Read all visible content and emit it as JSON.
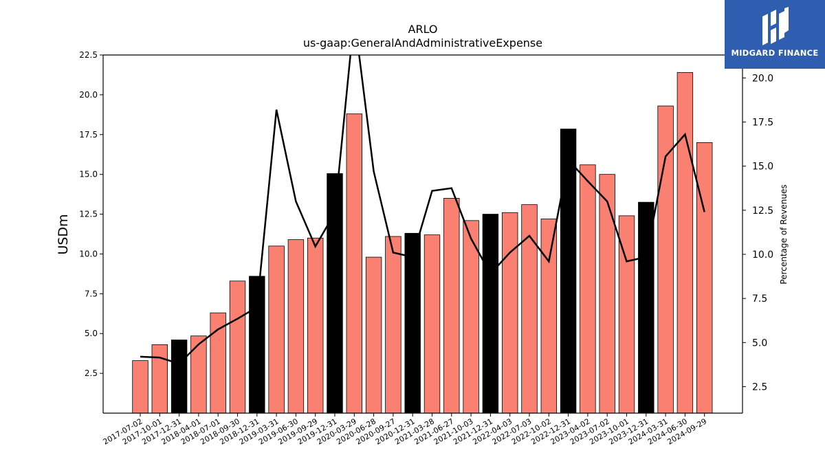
{
  "logo": {
    "text": "MIDGARD FINANCE",
    "icon": "midgard-logo-icon",
    "background": "#2f5db0"
  },
  "chart_data": {
    "type": "bar",
    "title": "ARLO",
    "subtitle": "us-gaap:GeneralAndAdministrativeExpense",
    "ylabel": "USDm",
    "ylabel_right": "Percentage of Revenues",
    "ylim": [
      0,
      22.5
    ],
    "ylim_right": [
      1.0,
      21.3
    ],
    "yticks": [
      2.5,
      5.0,
      7.5,
      10.0,
      12.5,
      15.0,
      17.5,
      20.0,
      22.5
    ],
    "yticks_right": [
      2.5,
      5.0,
      7.5,
      10.0,
      12.5,
      15.0,
      17.5,
      20.0
    ],
    "grid": false,
    "legend": "none",
    "colors": {
      "bar": "#fa8072",
      "bar_highlight": "#000000",
      "line": "#000000"
    },
    "categories": [
      "2017-07-02",
      "2017-10-01",
      "2017-12-31",
      "2018-04-01",
      "2018-07-01",
      "2018-09-30",
      "2018-12-31",
      "2019-03-31",
      "2019-06-30",
      "2019-09-29",
      "2019-12-31",
      "2020-03-29",
      "2020-06-28",
      "2020-09-27",
      "2020-12-31",
      "2021-03-28",
      "2021-06-27",
      "2021-10-03",
      "2021-12-31",
      "2022-04-03",
      "2022-07-03",
      "2022-10-02",
      "2022-12-31",
      "2023-04-02",
      "2023-07-02",
      "2023-10-01",
      "2023-12-31",
      "2024-03-31",
      "2024-06-30",
      "2024-09-29"
    ],
    "highlight_categories": [
      "2017-12-31",
      "2018-12-31",
      "2019-12-31",
      "2020-12-31",
      "2021-12-31",
      "2022-12-31",
      "2023-12-31"
    ],
    "series": [
      {
        "type": "bar",
        "axis": "left",
        "values": [
          3.3,
          4.3,
          4.6,
          4.85,
          6.3,
          8.3,
          8.6,
          10.5,
          10.9,
          11.0,
          15.05,
          18.8,
          9.8,
          11.1,
          11.3,
          11.2,
          13.5,
          12.1,
          12.5,
          12.6,
          13.1,
          12.2,
          17.85,
          15.6,
          15.0,
          12.4,
          13.25,
          19.3,
          21.4,
          17.0
        ]
      },
      {
        "type": "line",
        "axis": "right",
        "values": [
          4.2,
          4.15,
          3.8,
          4.9,
          5.75,
          6.35,
          7.0,
          18.2,
          13.0,
          10.45,
          12.35,
          23.5,
          14.7,
          10.1,
          9.85,
          13.6,
          13.75,
          10.9,
          8.9,
          10.1,
          11.05,
          9.6,
          15.35,
          14.15,
          13.0,
          9.6,
          9.85,
          15.55,
          16.8,
          12.4
        ]
      }
    ]
  }
}
